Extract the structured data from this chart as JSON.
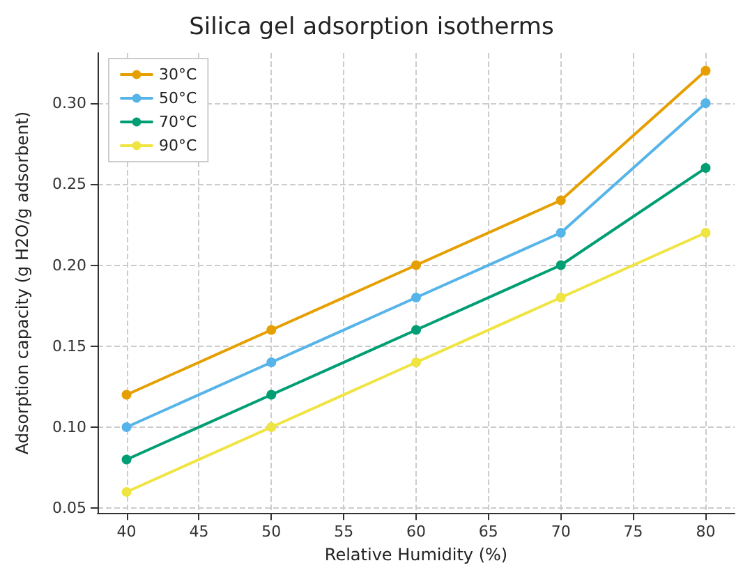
{
  "chart_data": {
    "type": "line",
    "title": "Silica gel adsorption isotherms",
    "xlabel": "Relative Humidity (%)",
    "ylabel": "Adsorption capacity (g H2O/g adsorbent)",
    "x": [
      40,
      50,
      60,
      70,
      80
    ],
    "series": [
      {
        "name": "30°C",
        "color": "#e69f00",
        "values": [
          0.12,
          0.16,
          0.2,
          0.24,
          0.32
        ]
      },
      {
        "name": "50°C",
        "color": "#56b4e9",
        "values": [
          0.1,
          0.14,
          0.18,
          0.22,
          0.3
        ]
      },
      {
        "name": "70°C",
        "color": "#009e73",
        "values": [
          0.08,
          0.12,
          0.16,
          0.2,
          0.26
        ]
      },
      {
        "name": "90°C",
        "color": "#f0e442",
        "values": [
          0.06,
          0.1,
          0.14,
          0.18,
          0.22
        ]
      }
    ],
    "xlim": [
      38,
      82
    ],
    "xticks": [
      40,
      45,
      50,
      55,
      60,
      65,
      70,
      75,
      80
    ],
    "ylim": [
      0.047,
      0.331
    ],
    "yticks": [
      {
        "value": 0.05,
        "label": "0.05"
      },
      {
        "value": 0.1,
        "label": "0.10"
      },
      {
        "value": 0.15,
        "label": "0.15"
      },
      {
        "value": 0.2,
        "label": "0.20"
      },
      {
        "value": 0.25,
        "label": "0.25"
      },
      {
        "value": 0.3,
        "label": "0.30"
      }
    ],
    "grid": true,
    "legend": "top left",
    "marker": "circle",
    "line_style": "solid"
  }
}
